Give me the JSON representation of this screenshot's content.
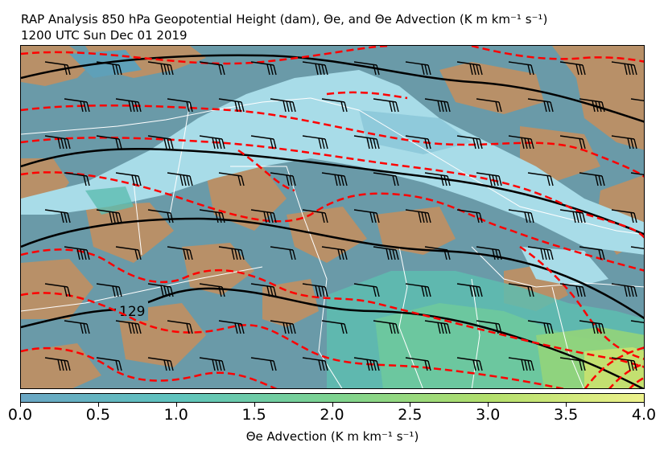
{
  "title": {
    "line1": "RAP Analysis 850 hPa Geopotential Height (dam), Θe, and Θe Advection (K m km⁻¹ s⁻¹)",
    "line2": "1200 UTC Sun Dec 01 2019"
  },
  "map": {
    "contour_label": "129",
    "colors": {
      "height_contour": "#000000",
      "theta_e_contour": "#ff0000",
      "land": "#b89068",
      "ocean_negative_advection": "#6a9aa8",
      "positive_advection_light": "#a8dce8",
      "boundaries": "#ffffff"
    }
  },
  "colorbar": {
    "label": "Θe Advection (K m km⁻¹ s⁻¹)",
    "ticks": [
      "0.0",
      "0.5",
      "1.0",
      "1.5",
      "2.0",
      "2.5",
      "3.0",
      "3.5",
      "4.0"
    ],
    "range": [
      0.0,
      4.0
    ],
    "colors": [
      "#6aa6c4",
      "#5fc4be",
      "#7dd390",
      "#b3df6c",
      "#eef28c"
    ]
  }
}
